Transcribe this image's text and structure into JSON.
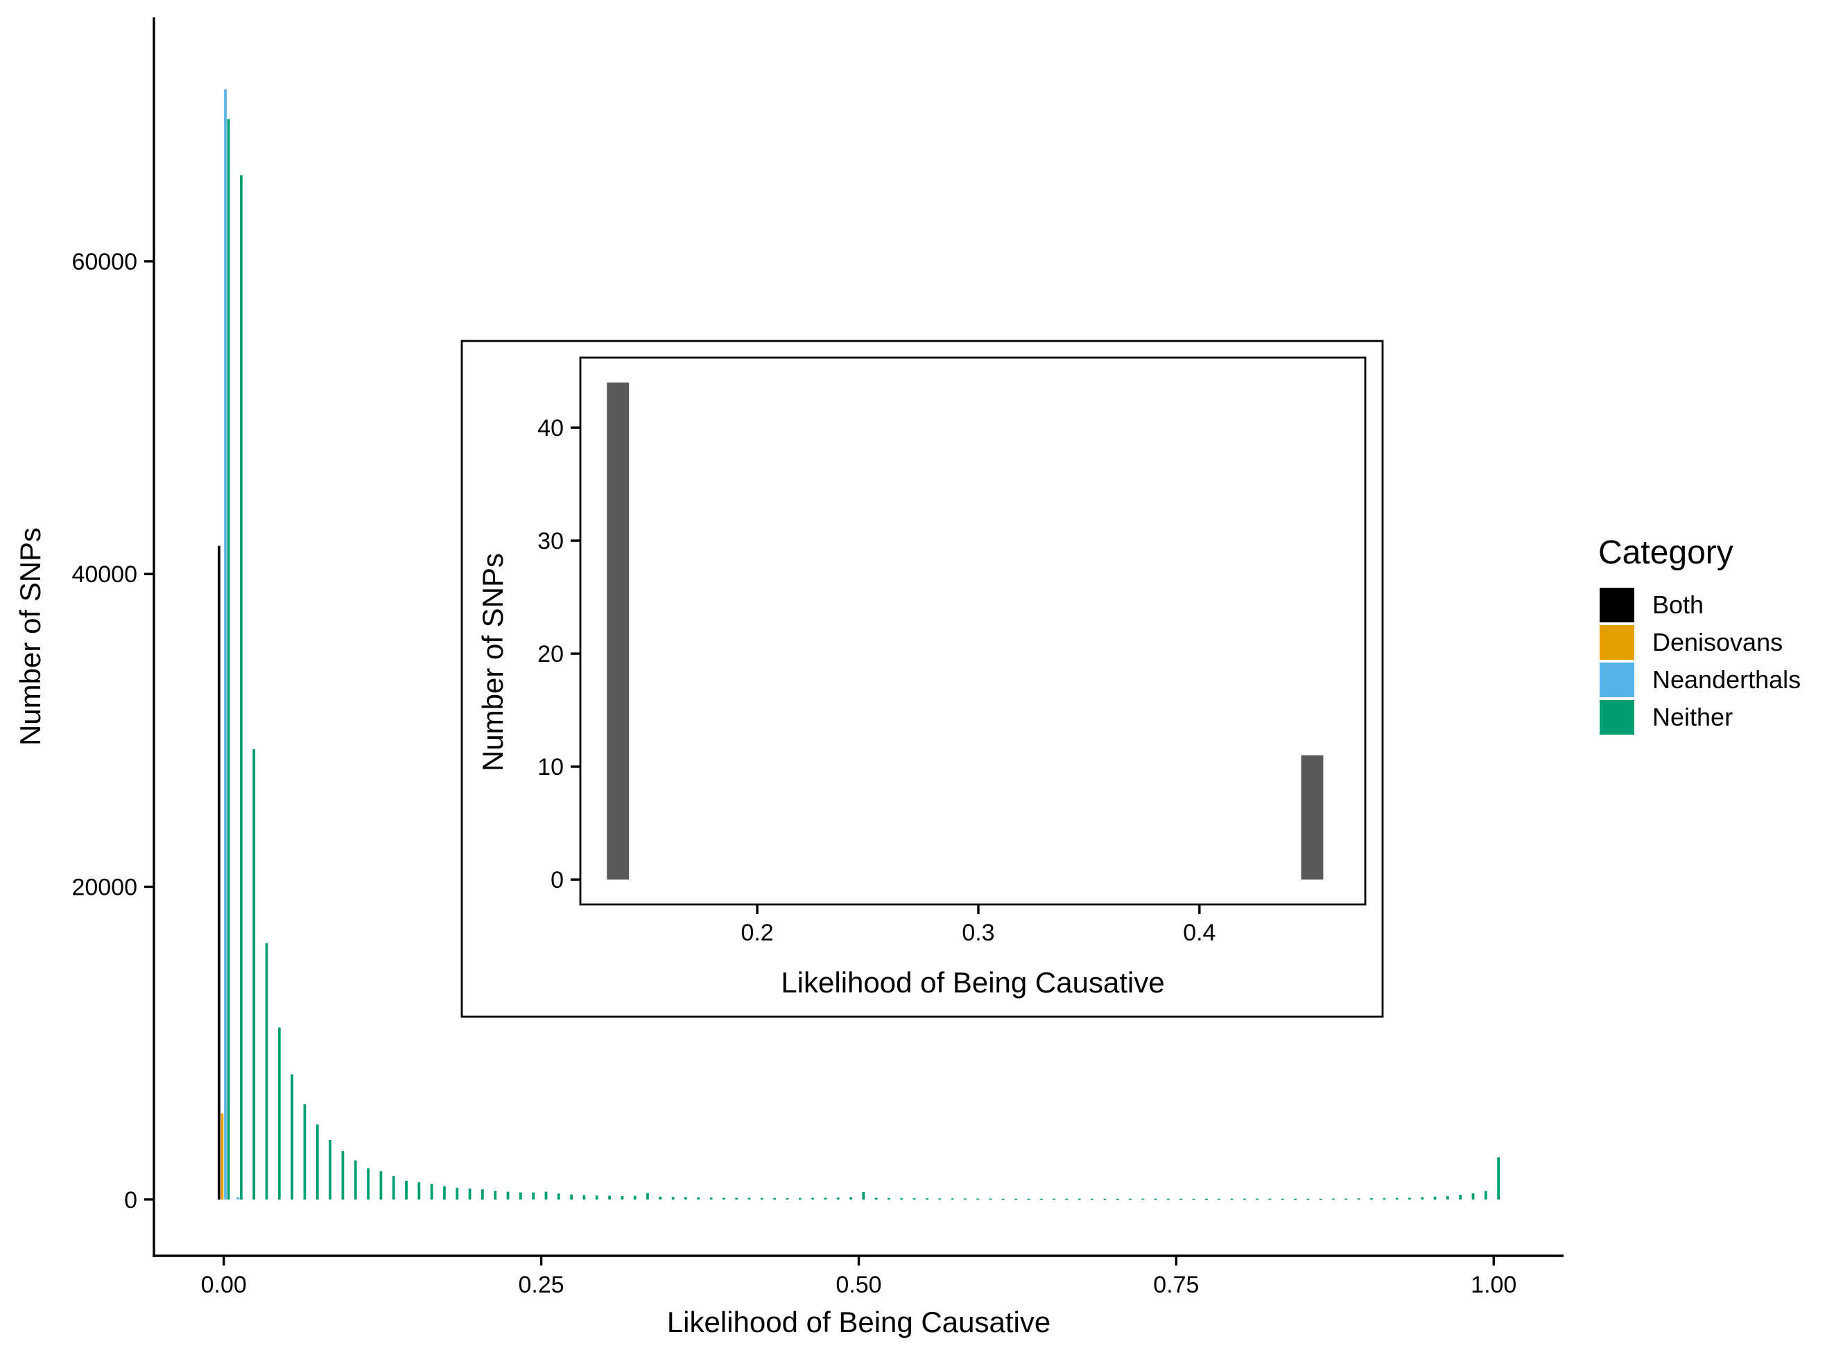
{
  "chart_data": [
    {
      "type": "bar",
      "xlabel": "Likelihood of Being Causative",
      "ylabel": "Number of SNPs",
      "xlim": [
        -0.055,
        1.055
      ],
      "ylim": [
        -3600,
        75600
      ],
      "x_ticks": [
        0,
        0.25,
        0.5,
        0.75,
        1.0
      ],
      "x_tick_labels": [
        "0.00",
        "0.25",
        "0.50",
        "0.75",
        "1.00"
      ],
      "y_ticks": [
        0,
        20000,
        40000,
        60000
      ],
      "y_tick_labels": [
        "0",
        "20000",
        "40000",
        "60000"
      ],
      "bin_width": 0.01,
      "grid": false,
      "legend": {
        "title": "Category",
        "placement": "right",
        "entries": [
          "Both",
          "Denisovans",
          "Neanderthals",
          "Neither"
        ]
      },
      "series": [
        {
          "name": "Both",
          "color": "#000000",
          "x": [
            0.0
          ],
          "values": [
            41800
          ]
        },
        {
          "name": "Denisovans",
          "color": "#E69F00",
          "x": [
            0.0
          ],
          "values": [
            5500
          ]
        },
        {
          "name": "Neanderthals",
          "color": "#56B4E9",
          "x": [
            0.0,
            0.01
          ],
          "values": [
            71000,
            150
          ]
        },
        {
          "name": "Neither",
          "color": "#009E73",
          "x": [
            0.0,
            0.01,
            0.02,
            0.03,
            0.04,
            0.05,
            0.06,
            0.07,
            0.08,
            0.09,
            0.1,
            0.11,
            0.12,
            0.13,
            0.14,
            0.15,
            0.16,
            0.17,
            0.18,
            0.19,
            0.2,
            0.21,
            0.22,
            0.23,
            0.24,
            0.25,
            0.26,
            0.27,
            0.28,
            0.29,
            0.3,
            0.31,
            0.32,
            0.33,
            0.34,
            0.35,
            0.36,
            0.37,
            0.38,
            0.39,
            0.4,
            0.41,
            0.42,
            0.43,
            0.44,
            0.45,
            0.46,
            0.47,
            0.48,
            0.49,
            0.5,
            0.51,
            0.52,
            0.53,
            0.54,
            0.55,
            0.56,
            0.57,
            0.58,
            0.59,
            0.6,
            0.61,
            0.62,
            0.63,
            0.64,
            0.65,
            0.66,
            0.67,
            0.68,
            0.69,
            0.7,
            0.71,
            0.72,
            0.73,
            0.74,
            0.75,
            0.76,
            0.77,
            0.78,
            0.79,
            0.8,
            0.81,
            0.82,
            0.83,
            0.84,
            0.85,
            0.86,
            0.87,
            0.88,
            0.89,
            0.9,
            0.91,
            0.92,
            0.93,
            0.94,
            0.95,
            0.96,
            0.97,
            0.98,
            0.99,
            1.0
          ],
          "values": [
            69100,
            65500,
            28800,
            16400,
            11000,
            8000,
            6100,
            4800,
            3800,
            3100,
            2500,
            2000,
            1800,
            1500,
            1200,
            1100,
            1000,
            850,
            750,
            700,
            650,
            550,
            500,
            450,
            450,
            500,
            380,
            320,
            280,
            260,
            240,
            220,
            230,
            420,
            180,
            160,
            150,
            140,
            130,
            120,
            110,
            110,
            100,
            100,
            90,
            100,
            110,
            120,
            130,
            150,
            480,
            120,
            100,
            90,
            80,
            80,
            70,
            70,
            60,
            60,
            60,
            50,
            50,
            50,
            50,
            50,
            50,
            50,
            50,
            50,
            50,
            50,
            50,
            50,
            50,
            50,
            50,
            50,
            50,
            50,
            50,
            50,
            50,
            50,
            50,
            50,
            50,
            60,
            60,
            70,
            80,
            90,
            100,
            120,
            150,
            180,
            220,
            300,
            400,
            550,
            2700
          ]
        }
      ]
    },
    {
      "type": "bar",
      "xlabel": "Likelihood of Being Causative",
      "ylabel": "Number of SNPs",
      "xlim": [
        0.12,
        0.475
      ],
      "ylim": [
        -2.2,
        46.2
      ],
      "x_ticks": [
        0.2,
        0.3,
        0.4
      ],
      "x_tick_labels": [
        "0.2",
        "0.3",
        "0.4"
      ],
      "y_ticks": [
        0,
        10,
        20,
        30,
        40
      ],
      "y_tick_labels": [
        "0",
        "10",
        "20",
        "30",
        "40"
      ],
      "bin_width": 0.01,
      "grid": false,
      "series": [
        {
          "color": "#595959",
          "x": [
            0.137,
            0.451
          ],
          "values": [
            44,
            11
          ]
        }
      ]
    }
  ]
}
